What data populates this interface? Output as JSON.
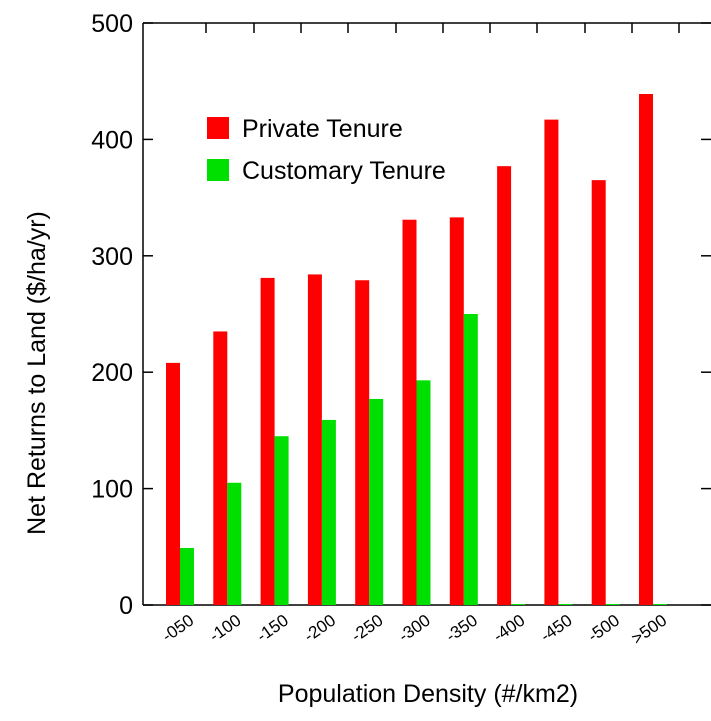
{
  "chart_data": {
    "type": "bar",
    "title": "",
    "xlabel": "Population Density (#/km2)",
    "ylabel": "Net Returns to Land ($/ha/yr)",
    "ylim": [
      0,
      500
    ],
    "yticks": [
      0,
      100,
      200,
      300,
      400,
      500
    ],
    "categories": [
      "-050",
      "-100",
      "-150",
      "-200",
      "-250",
      "-300",
      "-350",
      "-400",
      "-450",
      "-500",
      ">500"
    ],
    "series": [
      {
        "name": "Private Tenure",
        "color": "#ff0000",
        "values": [
          208,
          235,
          281,
          284,
          279,
          331,
          333,
          377,
          417,
          365,
          439
        ]
      },
      {
        "name": "Customary Tenure",
        "color": "#00e000",
        "values": [
          49,
          105,
          145,
          159,
          177,
          193,
          250,
          0,
          0,
          0,
          0
        ]
      }
    ],
    "legend_position": "top-left",
    "grid": false
  }
}
